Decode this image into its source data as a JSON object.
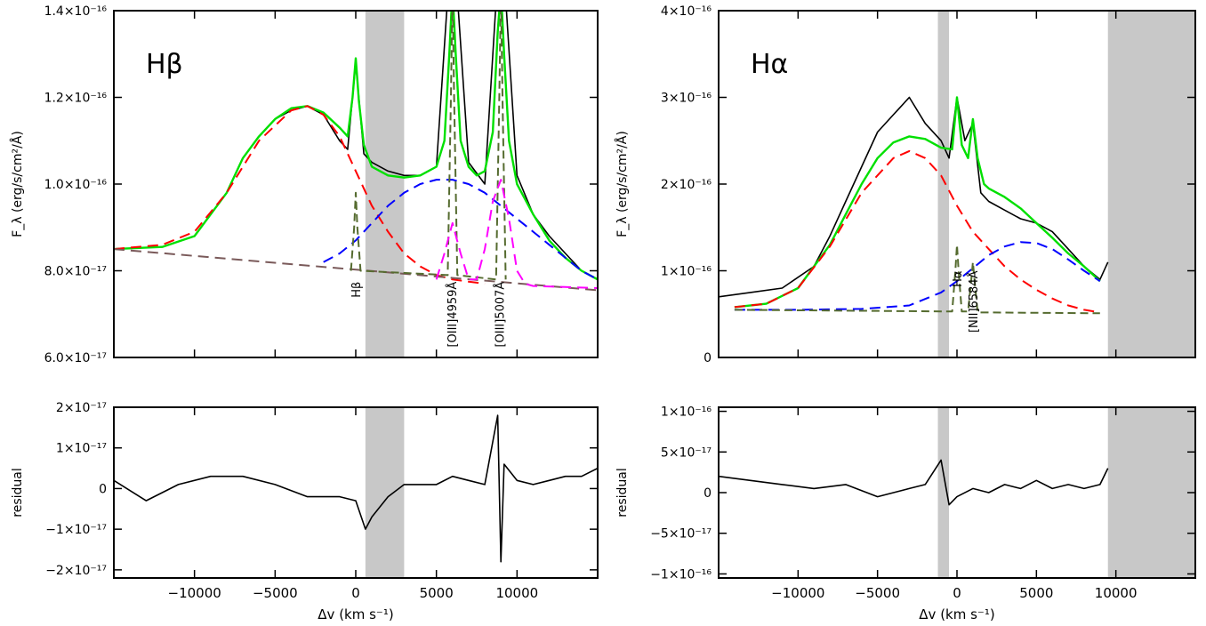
{
  "chart_data": [
    {
      "id": "hb_main",
      "type": "line",
      "panel_label": "Hβ",
      "ylabel": "F_λ (erg/s/cm²/Å)",
      "xlim": [
        -15000,
        15000
      ],
      "ylim": [
        6e-17,
        1.4e-16
      ],
      "yticks": [
        {
          "value": 6e-17,
          "label": "6.0×10⁻¹⁷"
        },
        {
          "value": 8e-17,
          "label": "8.0×10⁻¹⁷"
        },
        {
          "value": 1e-16,
          "label": "1.0×10⁻¹⁶"
        },
        {
          "value": 1.2e-16,
          "label": "1.2×10⁻¹⁶"
        },
        {
          "value": 1.4e-16,
          "label": "1.4×10⁻¹⁶"
        }
      ],
      "masked_regions": [
        [
          600,
          3000
        ]
      ],
      "line_labels": [
        {
          "text": "Hβ",
          "x": 0,
          "y": 7.75e-17
        },
        {
          "text": "[OIII]4959Å",
          "x": 5950,
          "y": 7.75e-17
        },
        {
          "text": "[OIII]5007Å",
          "x": 8900,
          "y": 7.75e-17
        }
      ],
      "series": [
        {
          "role": "data",
          "color": "#000000",
          "x": [
            -15000,
            -12000,
            -10000,
            -8000,
            -7000,
            -6000,
            -5000,
            -4000,
            -3000,
            -2000,
            -1000,
            -500,
            0,
            500,
            1000,
            2000,
            3000,
            4000,
            5000,
            6000,
            7000,
            8000,
            9000,
            10000,
            11000,
            12000,
            13000,
            14000,
            15000
          ],
          "y": [
            8.5e-17,
            8.55e-17,
            8.8e-17,
            9.8e-17,
            1.06e-16,
            1.11e-16,
            1.15e-16,
            1.17e-16,
            1.18e-16,
            1.16e-16,
            1.1e-16,
            1.08e-16,
            1.28e-16,
            1.07e-16,
            1.05e-16,
            1.03e-16,
            1.02e-16,
            1.02e-16,
            1.04e-16,
            1.6e-16,
            1.05e-16,
            1e-16,
            1.6e-16,
            1.02e-16,
            9.3e-17,
            8.8e-17,
            8.4e-17,
            8e-17,
            7.8e-17
          ]
        },
        {
          "role": "total fit",
          "color": "#00e000",
          "x": [
            -15000,
            -12000,
            -10000,
            -8000,
            -7000,
            -6000,
            -5000,
            -4000,
            -3000,
            -2000,
            -1000,
            -500,
            -200,
            0,
            200,
            500,
            1000,
            2000,
            3000,
            4000,
            5000,
            5500,
            5800,
            6000,
            6200,
            6500,
            7000,
            7500,
            8000,
            8500,
            8800,
            9000,
            9200,
            9500,
            10000,
            11000,
            12000,
            13000,
            14000,
            15000
          ],
          "y": [
            8.5e-17,
            8.55e-17,
            8.8e-17,
            9.8e-17,
            1.06e-16,
            1.11e-16,
            1.15e-16,
            1.175e-16,
            1.18e-16,
            1.165e-16,
            1.13e-16,
            1.11e-16,
            1.2e-16,
            1.29e-16,
            1.19e-16,
            1.09e-16,
            1.04e-16,
            1.02e-16,
            1.015e-16,
            1.02e-16,
            1.04e-16,
            1.1e-16,
            1.3e-16,
            1.45e-16,
            1.3e-16,
            1.1e-16,
            1.04e-16,
            1.02e-16,
            1.03e-16,
            1.12e-16,
            1.35e-16,
            1.45e-16,
            1.3e-16,
            1.1e-16,
            1e-16,
            9.3e-17,
            8.7e-17,
            8.3e-17,
            8e-17,
            7.8e-17
          ]
        },
        {
          "role": "broad component 1",
          "color": "#ff0000",
          "x": [
            -15000,
            -12000,
            -10000,
            -8000,
            -6000,
            -4000,
            -3000,
            -2000,
            -1000,
            0,
            1000,
            2000,
            3000,
            4000,
            5000,
            6000,
            7000,
            8000
          ],
          "y": [
            8.5e-17,
            8.6e-17,
            8.9e-17,
            9.8e-17,
            1.1e-16,
            1.17e-16,
            1.18e-16,
            1.16e-16,
            1.11e-16,
            1.03e-16,
            9.5e-17,
            8.9e-17,
            8.4e-17,
            8.1e-17,
            7.9e-17,
            7.8e-17,
            7.75e-17,
            7.7e-17
          ]
        },
        {
          "role": "broad component 2",
          "color": "#0000ff",
          "x": [
            -2000,
            -1000,
            0,
            1000,
            2000,
            3000,
            4000,
            5000,
            6000,
            7000,
            8000,
            9000,
            10000,
            11000,
            12000,
            13000,
            14000,
            15000
          ],
          "y": [
            8.2e-17,
            8.4e-17,
            8.7e-17,
            9.1e-17,
            9.5e-17,
            9.8e-17,
            1e-16,
            1.01e-16,
            1.01e-16,
            1e-16,
            9.8e-17,
            9.5e-17,
            9.2e-17,
            8.9e-17,
            8.6e-17,
            8.3e-17,
            8e-17,
            7.8e-17
          ]
        },
        {
          "role": "continuum",
          "color": "#7a5a5a",
          "x": [
            -15000,
            15000
          ],
          "y": [
            8.5e-17,
            7.55e-17
          ]
        },
        {
          "role": "narrow lines",
          "color": "#556b2f",
          "x": [
            -300,
            -100,
            0,
            100,
            300,
            5700,
            5900,
            6000,
            6100,
            6300,
            8700,
            8900,
            9000,
            9100,
            9300
          ],
          "y": [
            8e-17,
            9e-17,
            9.8e-17,
            9e-17,
            8e-17,
            7.9e-17,
            1.2e-16,
            1.45e-16,
            1.2e-16,
            7.9e-17,
            7.8e-17,
            1.2e-16,
            1.45e-16,
            1.2e-16,
            7.8e-17
          ]
        },
        {
          "role": "[OIII] broad wing",
          "color": "#ff00ff",
          "x": [
            5000,
            5500,
            6000,
            6500,
            7000,
            7500,
            8000,
            8500,
            9000,
            9500,
            10000,
            10500,
            11000,
            15000
          ],
          "y": [
            7.8e-17,
            8.4e-17,
            9.1e-17,
            8.4e-17,
            7.8e-17,
            7.8e-17,
            8.5e-17,
            9.6e-17,
            1.01e-16,
            9.2e-17,
            8e-17,
            7.7e-17,
            7.65e-17,
            7.6e-17
          ]
        }
      ]
    },
    {
      "id": "hb_residual",
      "type": "line",
      "ylabel": "residual",
      "xlabel": "Δv (km s⁻¹)",
      "xlim": [
        -15000,
        15000
      ],
      "ylim": [
        -2.2e-17,
        2e-17
      ],
      "xticks": [
        {
          "value": -10000,
          "label": "−10000"
        },
        {
          "value": -5000,
          "label": "−5000"
        },
        {
          "value": 0,
          "label": "0"
        },
        {
          "value": 5000,
          "label": "5000"
        },
        {
          "value": 10000,
          "label": "10000"
        }
      ],
      "yticks": [
        {
          "value": -2e-17,
          "label": "−2×10⁻¹⁷"
        },
        {
          "value": -1e-17,
          "label": "−1×10⁻¹⁷"
        },
        {
          "value": 0,
          "label": "0"
        },
        {
          "value": 1e-17,
          "label": "1×10⁻¹⁷"
        },
        {
          "value": 2e-17,
          "label": "2×10⁻¹⁷"
        }
      ],
      "masked_regions": [
        [
          600,
          3000
        ]
      ],
      "series": [
        {
          "role": "residual",
          "color": "#000000",
          "x": [
            -15000,
            -13000,
            -11000,
            -9000,
            -7000,
            -5000,
            -3000,
            -1000,
            0,
            600,
            1000,
            2000,
            3000,
            4000,
            5000,
            6000,
            7000,
            8000,
            8800,
            9000,
            9200,
            10000,
            11000,
            12000,
            13000,
            14000,
            15000
          ],
          "y": [
            2e-18,
            -3e-18,
            1e-18,
            3e-18,
            3e-18,
            1e-18,
            -2e-18,
            -2e-18,
            -3e-18,
            -1e-17,
            -7e-18,
            -2e-18,
            1e-18,
            1e-18,
            1e-18,
            3e-18,
            2e-18,
            1e-18,
            1.8e-17,
            -1.8e-17,
            6e-18,
            2e-18,
            1e-18,
            2e-18,
            3e-18,
            3e-18,
            5e-18
          ]
        }
      ]
    },
    {
      "id": "ha_main",
      "type": "line",
      "panel_label": "Hα",
      "ylabel": "F_λ (erg/s/cm²/Å)",
      "xlim": [
        -15000,
        15000
      ],
      "ylim": [
        0,
        4e-16
      ],
      "yticks": [
        {
          "value": 0,
          "label": "0"
        },
        {
          "value": 1e-16,
          "label": "1×10⁻¹⁶"
        },
        {
          "value": 2e-16,
          "label": "2×10⁻¹⁶"
        },
        {
          "value": 3e-16,
          "label": "3×10⁻¹⁶"
        },
        {
          "value": 4e-16,
          "label": "4×10⁻¹⁶"
        }
      ],
      "masked_regions": [
        [
          -1200,
          -500
        ],
        [
          9500,
          15000
        ]
      ],
      "line_labels": [
        {
          "text": "Hα",
          "x": 0,
          "y": 1e-16
        },
        {
          "text": "[NII]6584Å",
          "x": 1000,
          "y": 1e-16
        }
      ],
      "series": [
        {
          "role": "data",
          "color": "#000000",
          "x": [
            -15000,
            -13000,
            -11000,
            -9000,
            -8000,
            -7000,
            -6000,
            -5000,
            -4000,
            -3000,
            -2000,
            -1000,
            -500,
            0,
            500,
            1000,
            1500,
            2000,
            3000,
            4000,
            5000,
            6000,
            7000,
            8000,
            9000,
            9500
          ],
          "y": [
            7e-17,
            7.5e-17,
            8e-17,
            1.05e-16,
            1.4e-16,
            1.8e-16,
            2.2e-16,
            2.6e-16,
            2.8e-16,
            3e-16,
            2.7e-16,
            2.5e-16,
            2.3e-16,
            3e-16,
            2.5e-16,
            2.7e-16,
            1.9e-16,
            1.8e-16,
            1.7e-16,
            1.6e-16,
            1.55e-16,
            1.45e-16,
            1.25e-16,
            1.05e-16,
            9e-17,
            1.1e-16
          ]
        },
        {
          "role": "total fit",
          "color": "#00e000",
          "x": [
            -14000,
            -12000,
            -10000,
            -8000,
            -7000,
            -6000,
            -5000,
            -4000,
            -3000,
            -2000,
            -1000,
            -300,
            0,
            300,
            700,
            1000,
            1300,
            1700,
            2000,
            3000,
            4000,
            5000,
            6000,
            7000,
            8000,
            9000
          ],
          "y": [
            5.8e-17,
            6.2e-17,
            8e-17,
            1.3e-16,
            1.65e-16,
            2e-16,
            2.3e-16,
            2.48e-16,
            2.55e-16,
            2.52e-16,
            2.42e-16,
            2.4e-16,
            3e-16,
            2.45e-16,
            2.3e-16,
            2.75e-16,
            2.3e-16,
            2e-16,
            1.95e-16,
            1.85e-16,
            1.72e-16,
            1.55e-16,
            1.38e-16,
            1.2e-16,
            1.05e-16,
            8.8e-17
          ]
        },
        {
          "role": "broad component 1",
          "color": "#ff0000",
          "x": [
            -14000,
            -12000,
            -10000,
            -8000,
            -6000,
            -4000,
            -3000,
            -2000,
            -1000,
            0,
            1000,
            2000,
            3000,
            4000,
            5000,
            6000,
            7000,
            8000,
            9000
          ],
          "y": [
            5.8e-17,
            6.2e-17,
            8e-17,
            1.28e-16,
            1.9e-16,
            2.3e-16,
            2.38e-16,
            2.3e-16,
            2.1e-16,
            1.75e-16,
            1.45e-16,
            1.25e-16,
            1.05e-16,
            9e-17,
            7.8e-17,
            6.8e-17,
            6e-17,
            5.5e-17,
            5.2e-17
          ]
        },
        {
          "role": "broad component 2",
          "color": "#0000ff",
          "x": [
            -14000,
            -10000,
            -6000,
            -3000,
            -1000,
            0,
            1000,
            2000,
            3000,
            4000,
            5000,
            6000,
            7000,
            8000,
            9000
          ],
          "y": [
            5.5e-17,
            5.5e-17,
            5.6e-17,
            6e-17,
            7.5e-17,
            8.8e-17,
            1.03e-16,
            1.18e-16,
            1.28e-16,
            1.33e-16,
            1.32e-16,
            1.25e-16,
            1.13e-16,
            1e-16,
            8.8e-17
          ]
        },
        {
          "role": "narrow lines",
          "color": "#556b2f",
          "x": [
            -14000,
            -300,
            -100,
            0,
            100,
            300,
            700,
            900,
            1000,
            1100,
            1300,
            9000
          ],
          "y": [
            5.5e-17,
            5.3e-17,
            1e-16,
            1.3e-16,
            1e-16,
            5.3e-17,
            5.3e-17,
            9e-17,
            1.1e-16,
            9e-17,
            5.2e-17,
            5.1e-17
          ]
        }
      ]
    },
    {
      "id": "ha_residual",
      "type": "line",
      "ylabel": "residual",
      "xlabel": "Δv (km s⁻¹)",
      "xlim": [
        -15000,
        15000
      ],
      "ylim": [
        -1.05e-16,
        1.05e-16
      ],
      "xticks": [
        {
          "value": -10000,
          "label": "−10000"
        },
        {
          "value": -5000,
          "label": "−5000"
        },
        {
          "value": 0,
          "label": "0"
        },
        {
          "value": 5000,
          "label": "5000"
        },
        {
          "value": 10000,
          "label": "10000"
        }
      ],
      "yticks": [
        {
          "value": -1e-16,
          "label": "−1×10⁻¹⁶"
        },
        {
          "value": -5e-17,
          "label": "−5×10⁻¹⁷"
        },
        {
          "value": 0,
          "label": "0"
        },
        {
          "value": 5e-17,
          "label": "5×10⁻¹⁷"
        },
        {
          "value": 1e-16,
          "label": "1×10⁻¹⁶"
        }
      ],
      "masked_regions": [
        [
          -1200,
          -500
        ],
        [
          9500,
          15000
        ]
      ],
      "series": [
        {
          "role": "residual",
          "color": "#000000",
          "x": [
            -15000,
            -13000,
            -11000,
            -9000,
            -7000,
            -5000,
            -3000,
            -2000,
            -1000,
            -500,
            0,
            1000,
            2000,
            3000,
            4000,
            5000,
            6000,
            7000,
            8000,
            9000,
            9500
          ],
          "y": [
            2e-17,
            1.5e-17,
            1e-17,
            5e-18,
            1e-17,
            -5e-18,
            5e-18,
            1e-17,
            4e-17,
            -1.5e-17,
            -5e-18,
            5e-18,
            0.0,
            1e-17,
            5e-18,
            1.5e-17,
            5e-18,
            1e-17,
            5e-18,
            1e-17,
            3e-17
          ]
        }
      ]
    }
  ]
}
